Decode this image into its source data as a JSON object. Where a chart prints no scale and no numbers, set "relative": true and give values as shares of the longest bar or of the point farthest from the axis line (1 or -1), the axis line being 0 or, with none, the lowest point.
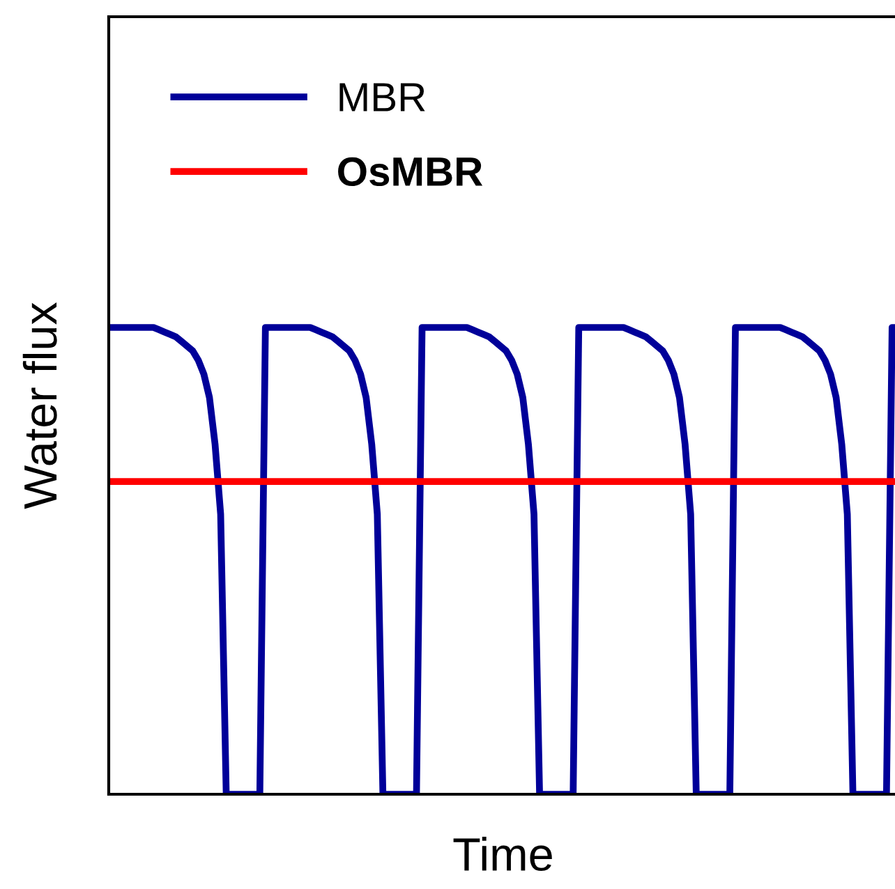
{
  "chart_data": {
    "type": "line",
    "relative": true,
    "xlabel": "Time",
    "ylabel": "Water flux",
    "legend": "top left",
    "tick_labels": false,
    "line_style": "solid",
    "marker": "none",
    "categories": [
      null,
      null,
      null,
      null,
      null,
      null,
      null,
      null,
      null,
      null,
      null,
      null,
      null,
      null,
      null,
      null,
      null,
      null,
      null,
      null,
      null,
      null,
      null,
      null,
      null,
      null,
      null,
      null,
      null,
      null,
      null,
      null,
      null,
      null,
      null,
      null,
      null,
      null,
      null,
      null,
      null,
      null,
      null,
      null,
      null,
      null,
      null,
      null,
      null,
      null,
      null,
      null,
      null,
      null,
      null,
      null,
      null,
      null,
      null,
      null,
      null,
      null,
      null,
      null,
      null,
      null,
      null,
      null,
      null,
      null,
      null,
      null,
      null,
      null,
      null,
      null,
      null,
      null,
      null,
      null,
      null,
      null,
      null,
      null,
      null,
      null,
      null,
      null,
      null,
      null,
      null,
      null,
      null,
      null,
      null,
      null,
      null,
      null,
      null,
      null,
      null,
      null,
      null,
      null,
      null,
      null,
      null,
      null,
      null,
      null,
      null,
      null,
      null,
      null,
      null,
      null,
      null,
      null,
      null,
      null,
      null,
      null,
      null,
      null,
      null,
      null,
      null,
      null,
      null,
      null,
      null,
      null,
      null,
      null,
      null,
      null,
      null,
      null,
      null,
      null,
      null,
      null
    ],
    "series": [
      {
        "name": "MBR",
        "color": "#000099",
        "values": [
          1,
          1,
          1,
          1,
          1,
          1,
          1,
          1,
          1,
          0.995,
          0.99,
          0.985,
          0.98,
          0.97,
          0.96,
          0.95,
          0.93,
          0.9,
          0.85,
          0.75,
          0.6,
          0,
          0,
          0,
          0,
          0,
          0,
          0,
          1,
          1,
          1,
          1,
          1,
          1,
          1,
          1,
          1,
          0.995,
          0.99,
          0.985,
          0.98,
          0.97,
          0.96,
          0.95,
          0.93,
          0.9,
          0.85,
          0.75,
          0.6,
          0,
          0,
          0,
          0,
          0,
          0,
          0,
          1,
          1,
          1,
          1,
          1,
          1,
          1,
          1,
          1,
          0.995,
          0.99,
          0.985,
          0.98,
          0.97,
          0.96,
          0.95,
          0.93,
          0.9,
          0.85,
          0.75,
          0.6,
          0,
          0,
          0,
          0,
          0,
          0,
          0,
          1,
          1,
          1,
          1,
          1,
          1,
          1,
          1,
          1,
          0.995,
          0.99,
          0.985,
          0.98,
          0.97,
          0.96,
          0.95,
          0.93,
          0.9,
          0.85,
          0.75,
          0.6,
          0,
          0,
          0,
          0,
          0,
          0,
          0,
          1,
          1,
          1,
          1,
          1,
          1,
          1,
          1,
          1,
          0.995,
          0.99,
          0.985,
          0.98,
          0.97,
          0.96,
          0.95,
          0.93,
          0.9,
          0.85,
          0.75,
          0.6,
          0,
          0,
          0,
          0,
          0,
          0,
          0,
          1,
          1
        ]
      },
      {
        "name": "OsMBR",
        "color": "#ff0000",
        "values": [
          0.67,
          0.67,
          0.67,
          0.67,
          0.67,
          0.67,
          0.67,
          0.67,
          0.67,
          0.67,
          0.67,
          0.67,
          0.67,
          0.67,
          0.67,
          0.67,
          0.67,
          0.67,
          0.67,
          0.67,
          0.67,
          0.67,
          0.67,
          0.67,
          0.67,
          0.67,
          0.67,
          0.67,
          0.67,
          0.67,
          0.67,
          0.67,
          0.67,
          0.67,
          0.67,
          0.67,
          0.67,
          0.67,
          0.67,
          0.67,
          0.67,
          0.67,
          0.67,
          0.67,
          0.67,
          0.67,
          0.67,
          0.67,
          0.67,
          0.67,
          0.67,
          0.67,
          0.67,
          0.67,
          0.67,
          0.67,
          0.67,
          0.67,
          0.67,
          0.67,
          0.67,
          0.67,
          0.67,
          0.67,
          0.67,
          0.67,
          0.67,
          0.67,
          0.67,
          0.67,
          0.67,
          0.67,
          0.67,
          0.67,
          0.67,
          0.67,
          0.67,
          0.67,
          0.67,
          0.67,
          0.67,
          0.67,
          0.67,
          0.67,
          0.67,
          0.67,
          0.67,
          0.67,
          0.67,
          0.67,
          0.67,
          0.67,
          0.67,
          0.67,
          0.67,
          0.67,
          0.67,
          0.67,
          0.67,
          0.67,
          0.67,
          0.67,
          0.67,
          0.67,
          0.67,
          0.67,
          0.67,
          0.67,
          0.67,
          0.67,
          0.67,
          0.67,
          0.67,
          0.67,
          0.67,
          0.67,
          0.67,
          0.67,
          0.67,
          0.67,
          0.67,
          0.67,
          0.67,
          0.67,
          0.67,
          0.67,
          0.67,
          0.67,
          0.67,
          0.67,
          0.67,
          0.67,
          0.67,
          0.67,
          0.67,
          0.67,
          0.67,
          0.67,
          0.67,
          0.67,
          0.67,
          0.67
        ]
      }
    ]
  }
}
